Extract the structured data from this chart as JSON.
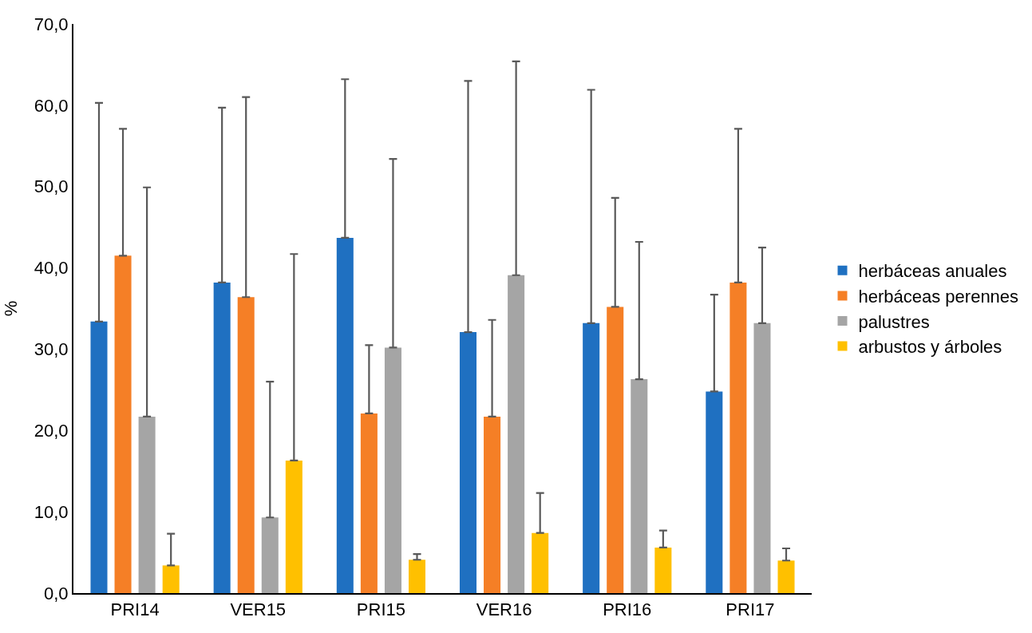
{
  "chart_data": {
    "type": "bar",
    "ylabel": "%",
    "categories": [
      "PRI14",
      "VER15",
      "PRI15",
      "VER16",
      "PRI16",
      "PRI17"
    ],
    "series": [
      {
        "name": "herbáceas anuales",
        "color": "#1f70c1",
        "values": [
          33.4,
          38.2,
          43.7,
          32.1,
          33.2,
          24.8
        ],
        "errors": [
          [
            33.4,
            60.3
          ],
          [
            38.2,
            59.7
          ],
          [
            43.7,
            63.2
          ],
          [
            32.1,
            63.0
          ],
          [
            33.2,
            61.9
          ],
          [
            24.8,
            36.7
          ]
        ]
      },
      {
        "name": "herbáceas perennes",
        "color": "#f57f26",
        "values": [
          41.5,
          36.4,
          22.1,
          21.7,
          35.2,
          38.2
        ],
        "errors": [
          [
            41.5,
            57.1
          ],
          [
            36.4,
            61.0
          ],
          [
            22.1,
            30.5
          ],
          [
            21.7,
            33.6
          ],
          [
            35.2,
            48.6
          ],
          [
            38.2,
            57.1
          ]
        ]
      },
      {
        "name": "palustres",
        "color": "#a5a5a5",
        "values": [
          21.7,
          9.3,
          30.2,
          39.1,
          26.3,
          33.2
        ],
        "errors": [
          [
            21.7,
            49.9
          ],
          [
            9.3,
            26.0
          ],
          [
            30.2,
            53.4
          ],
          [
            39.1,
            65.4
          ],
          [
            26.3,
            43.2
          ],
          [
            33.2,
            42.5
          ]
        ]
      },
      {
        "name": "arbustos y árboles",
        "color": "#ffc000",
        "values": [
          3.4,
          16.3,
          4.1,
          7.4,
          5.6,
          4.0
        ],
        "errors": [
          [
            3.4,
            7.3
          ],
          [
            16.3,
            41.7
          ],
          [
            4.1,
            4.8
          ],
          [
            7.4,
            12.3
          ],
          [
            5.6,
            7.7
          ],
          [
            4.0,
            5.5
          ]
        ]
      }
    ],
    "ylim": [
      0,
      70
    ],
    "yticks": [
      {
        "value": 0,
        "label": "0,0"
      },
      {
        "value": 10,
        "label": "10,0"
      },
      {
        "value": 20,
        "label": "20,0"
      },
      {
        "value": 30,
        "label": "30,0"
      },
      {
        "value": 40,
        "label": "40,0"
      },
      {
        "value": 50,
        "label": "50,0"
      },
      {
        "value": 60,
        "label": "60,0"
      },
      {
        "value": 70,
        "label": "70,0"
      }
    ],
    "grid": false,
    "legend": "right"
  }
}
